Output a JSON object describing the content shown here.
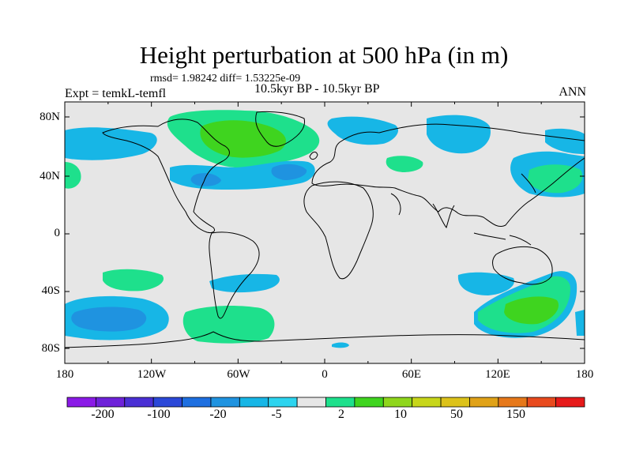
{
  "title": "Height perturbation at 500 hPa (in m)",
  "rmsd_line": "rmsd= 1.98242 diff= 1.53225e-09",
  "experiment": "Expt = temkL-temfl",
  "period": "10.5kyr BP - 10.5kyr BP",
  "season": "ANN",
  "lat_labels": [
    "80N",
    "40N",
    "0",
    "40S",
    "80S"
  ],
  "lon_labels": [
    "180",
    "120W",
    "60W",
    "0",
    "60E",
    "120E",
    "180"
  ],
  "colorbar": {
    "labels": [
      "-200",
      "-100",
      "-20",
      "-5",
      "2",
      "10",
      "50",
      "150"
    ],
    "colors": [
      "#8a1ae6",
      "#6e22d9",
      "#4a2fd4",
      "#2b48d8",
      "#1e6fe0",
      "#1f93e0",
      "#17b6e6",
      "#2dd4ef",
      "#e6e6e6",
      "#1ee08c",
      "#3fd41f",
      "#8fd61c",
      "#c7d61a",
      "#dcc21a",
      "#e0a218",
      "#e6781a",
      "#e84a1e",
      "#e61a1a"
    ]
  },
  "fill_colors": {
    "ocean_land": "#e6e6e6",
    "light_blue": "#17b6e6",
    "mid_blue": "#1f93e0",
    "light_green": "#1ee08c",
    "mid_green": "#3fd41f"
  }
}
